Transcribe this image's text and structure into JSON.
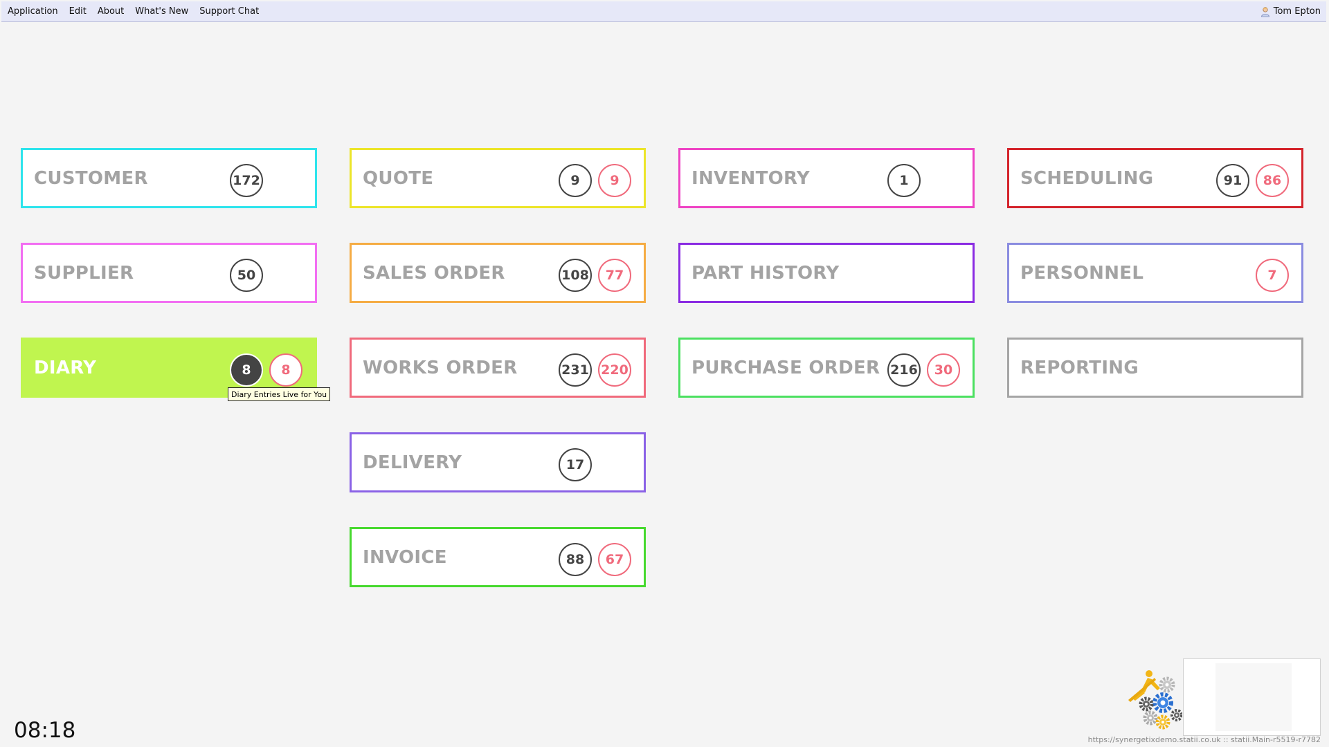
{
  "menubar": {
    "items": [
      "Application",
      "Edit",
      "About",
      "What's New",
      "Support Chat"
    ],
    "user": "Tom Epton"
  },
  "tiles": [
    {
      "label": "CUSTOMER",
      "count": "172",
      "color": "#2ee4ec"
    },
    {
      "label": "SUPPLIER",
      "count": "50",
      "color": "#f26ef2"
    },
    {
      "label": "DIARY",
      "count": "8",
      "alert": "8",
      "color": "#c0f54f"
    },
    {
      "label": "QUOTE",
      "count": "9",
      "alert": "9",
      "color": "#ece52a"
    },
    {
      "label": "SALES ORDER",
      "count": "108",
      "alert": "77",
      "color": "#f5ac44"
    },
    {
      "label": "WORKS ORDER",
      "count": "231",
      "alert": "220",
      "color": "#f06a7c"
    },
    {
      "label": "DELIVERY",
      "count": "17",
      "color": "#8a62e6"
    },
    {
      "label": "INVOICE",
      "count": "88",
      "alert": "67",
      "color": "#47d92f"
    },
    {
      "label": "INVENTORY",
      "count": "1",
      "color": "#ee44c4"
    },
    {
      "label": "PART HISTORY",
      "color": "#8a2be2"
    },
    {
      "label": "PURCHASE ORDER",
      "count": "216",
      "alert": "30",
      "color": "#4be060"
    },
    {
      "label": "SCHEDULING",
      "count": "91",
      "alert": "86",
      "color": "#d4242c"
    },
    {
      "label": "PERSONNEL",
      "alert": "7",
      "color": "#8a8ce0"
    },
    {
      "label": "REPORTING",
      "color": "#a5a5a5"
    }
  ],
  "tooltip": "Diary Entries Live for You",
  "clock": "08:18",
  "footer": "https://synergetixdemo.statii.co.uk :: statii.Main-r5519-r7782"
}
